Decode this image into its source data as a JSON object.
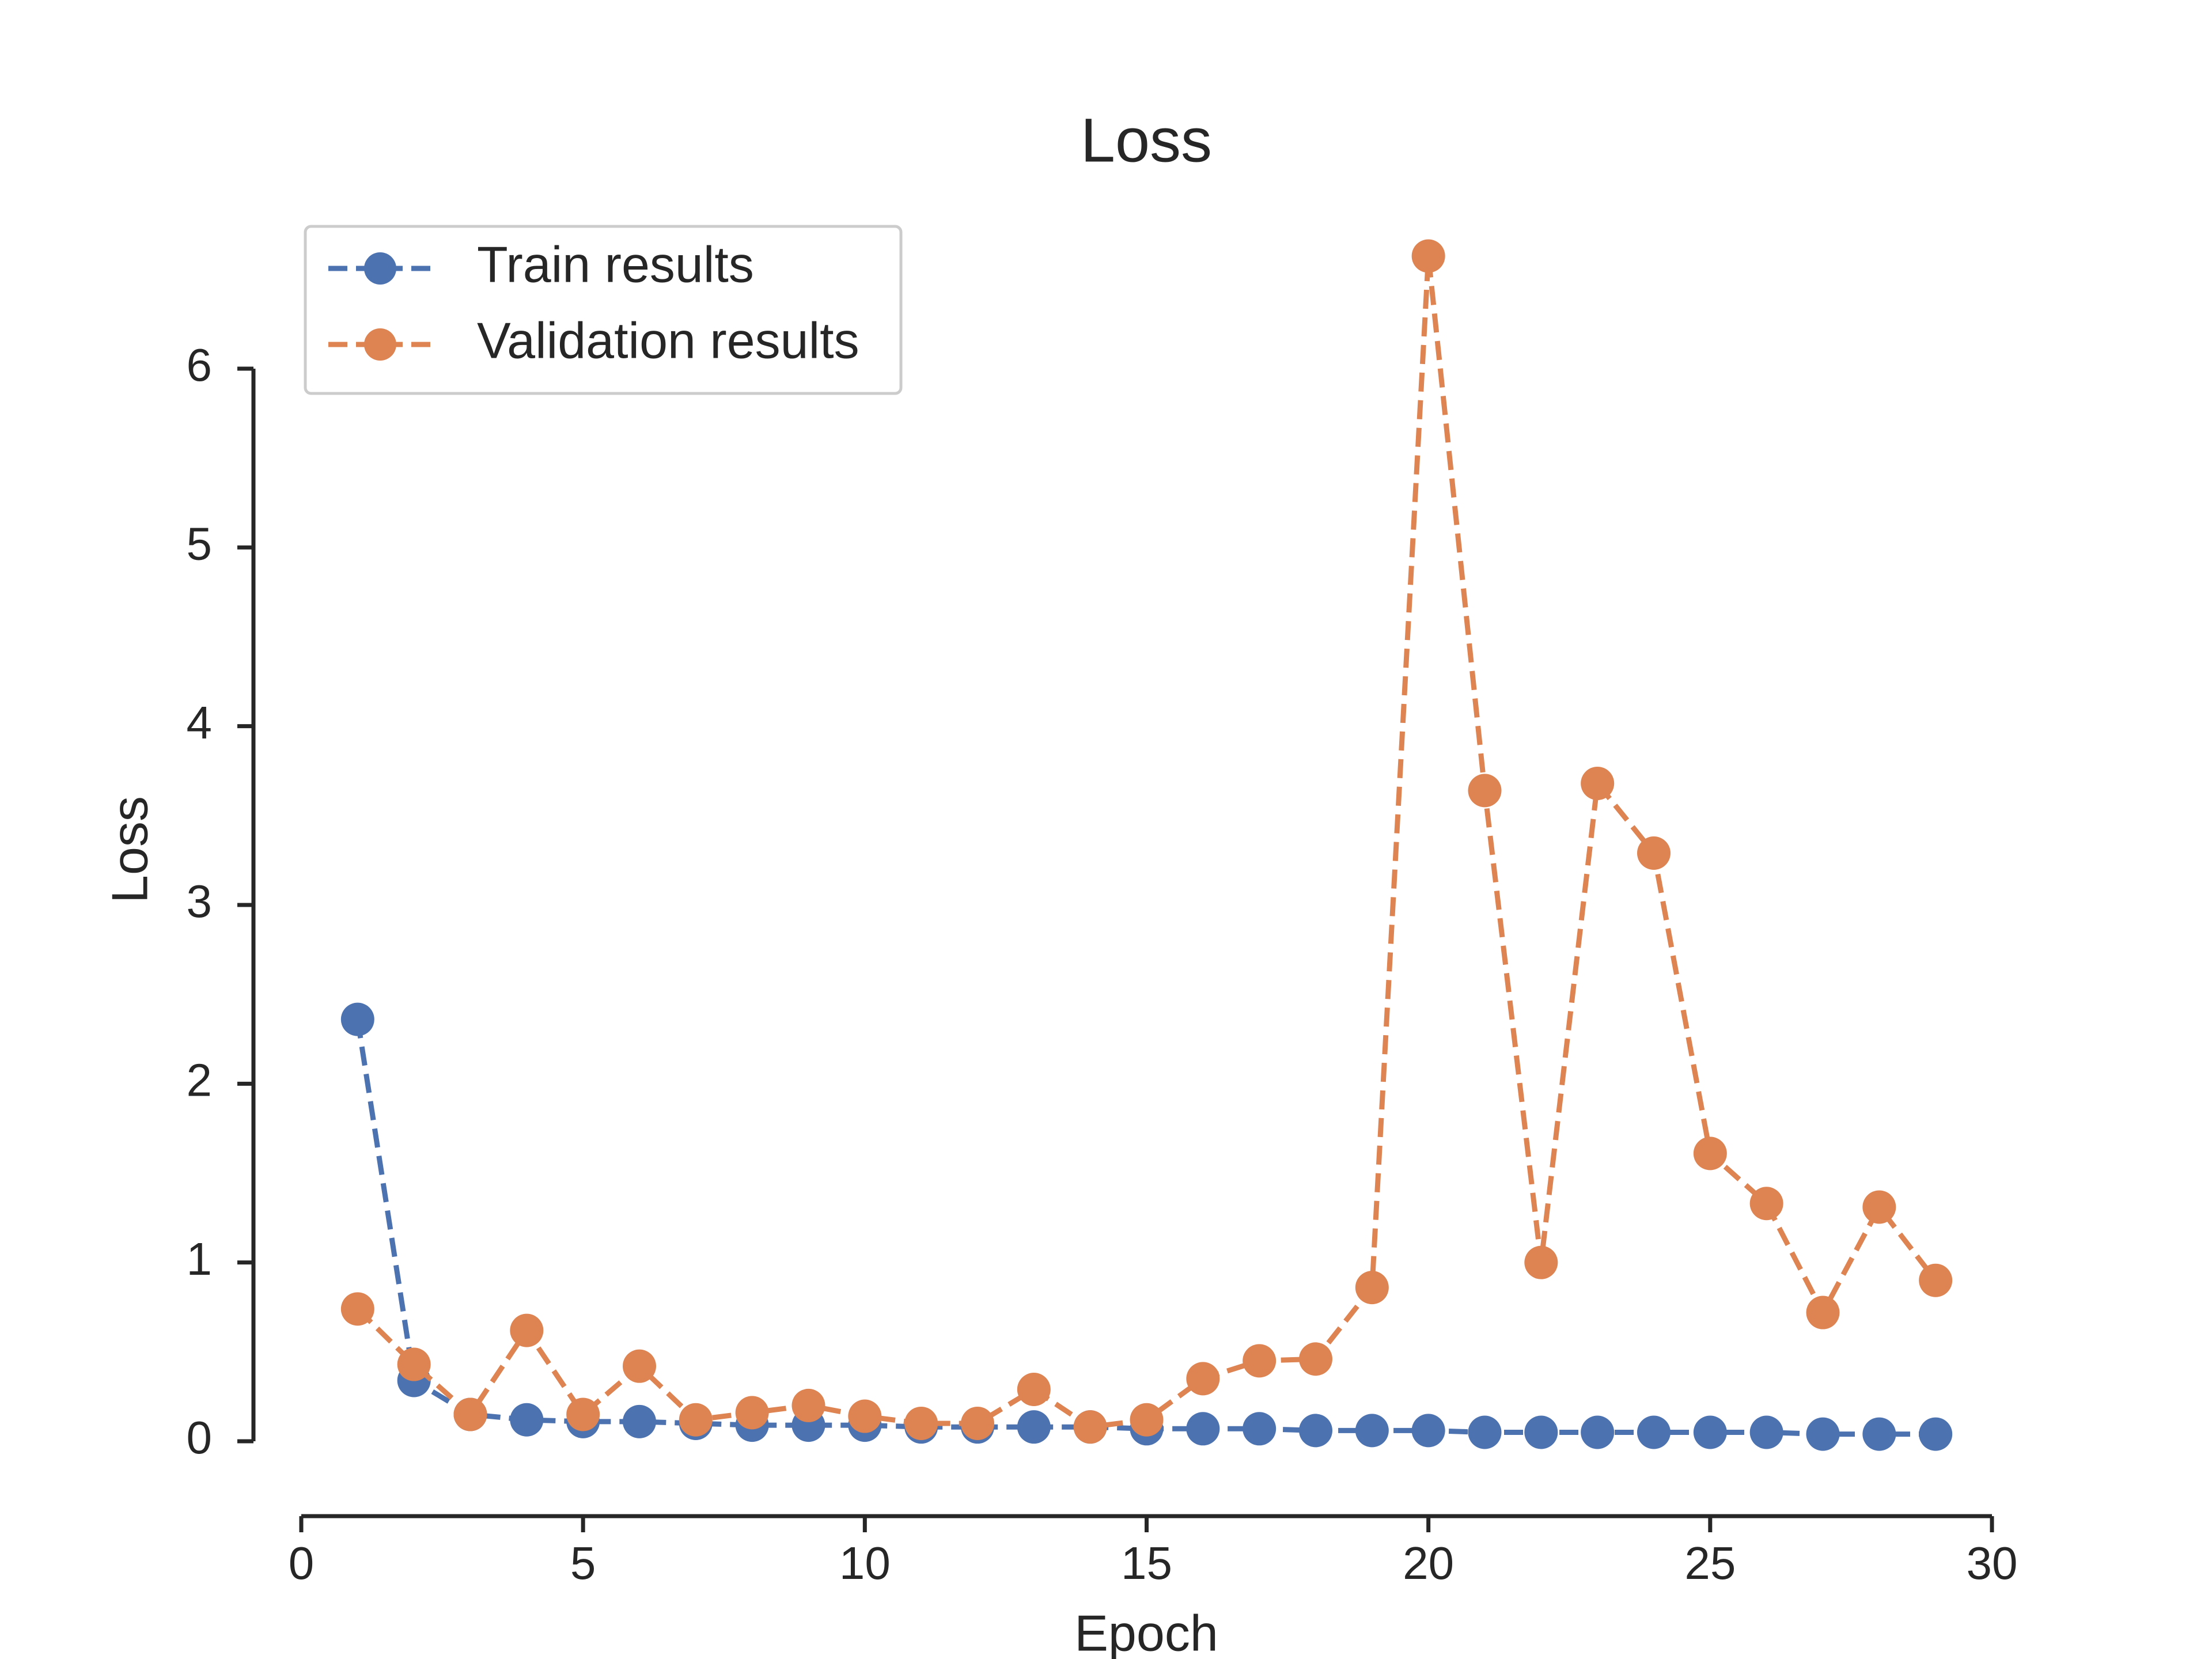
{
  "chart_data": {
    "type": "line",
    "title": "Loss",
    "xlabel": "Epoch",
    "ylabel": "Loss",
    "xlim": [
      0,
      30
    ],
    "ylim": [
      0,
      6
    ],
    "x_ticks": [
      0,
      5,
      10,
      15,
      20,
      25,
      30
    ],
    "y_ticks": [
      0,
      1,
      2,
      3,
      4,
      5,
      6
    ],
    "grid": false,
    "legend_position": "top-left",
    "x": [
      1,
      2,
      3,
      4,
      5,
      6,
      7,
      8,
      9,
      10,
      11,
      12,
      13,
      14,
      15,
      16,
      17,
      18,
      19,
      20,
      21,
      22,
      23,
      24,
      25,
      26,
      27,
      28,
      29
    ],
    "series": [
      {
        "name": "Train results",
        "color": "#4c72b0",
        "values": [
          2.36,
          0.34,
          0.15,
          0.12,
          0.11,
          0.11,
          0.1,
          0.09,
          0.09,
          0.09,
          0.08,
          0.08,
          0.08,
          0.08,
          0.07,
          0.07,
          0.07,
          0.06,
          0.06,
          0.06,
          0.05,
          0.05,
          0.05,
          0.05,
          0.05,
          0.05,
          0.04,
          0.04,
          0.04
        ]
      },
      {
        "name": "Validation results",
        "color": "#dd8452",
        "values": [
          0.74,
          0.43,
          0.15,
          0.62,
          0.15,
          0.42,
          0.12,
          0.16,
          0.2,
          0.14,
          0.1,
          0.1,
          0.29,
          0.08,
          0.12,
          0.35,
          0.45,
          0.46,
          0.86,
          6.63,
          3.64,
          1.0,
          3.68,
          3.29,
          1.61,
          1.33,
          0.72,
          1.31,
          0.9
        ]
      }
    ]
  }
}
